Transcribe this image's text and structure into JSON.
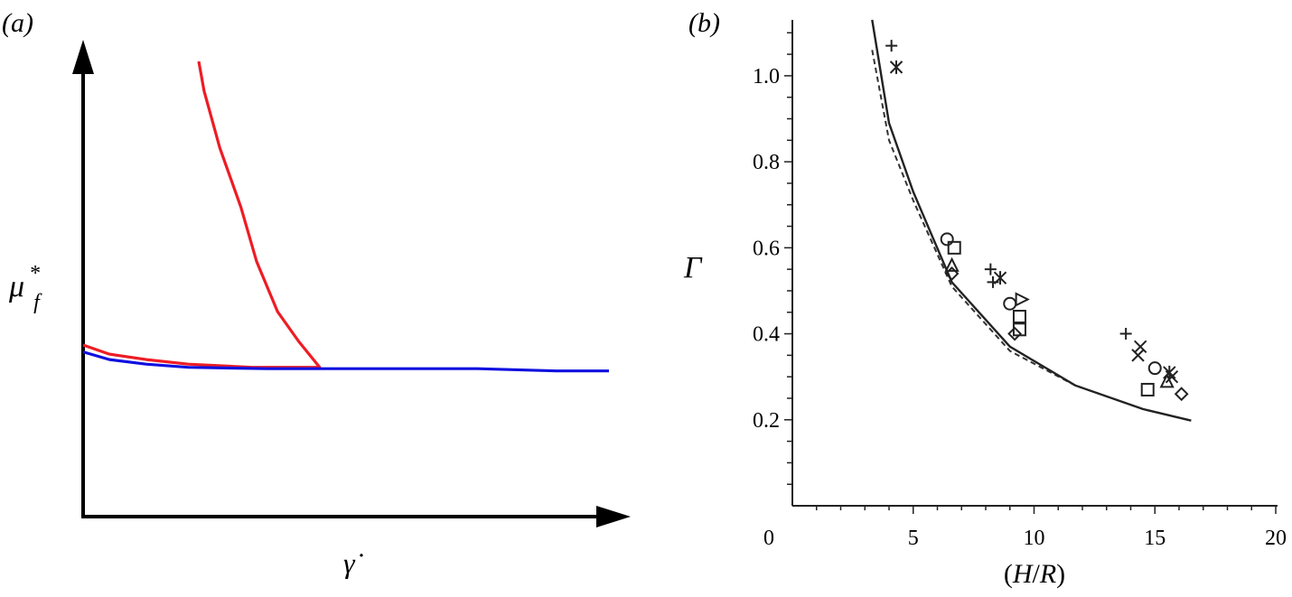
{
  "chart_data": [
    {
      "panel": "(a)",
      "type": "line",
      "xlabel": "γ̇",
      "ylabel": "μ",
      "ylabel_sup": "*",
      "ylabel_sub": "f",
      "colors": {
        "curve_red": "#ee1c24",
        "curve_blue": "#1010e0",
        "axis": "#000000"
      },
      "series": [
        {
          "color": "#ee1c24",
          "points": [
            [
              0.0,
              0.377
            ],
            [
              0.05,
              0.357
            ],
            [
              0.12,
              0.345
            ],
            [
              0.2,
              0.335
            ],
            [
              0.32,
              0.328
            ],
            [
              0.45,
              0.328
            ],
            [
              0.41,
              0.385
            ],
            [
              0.37,
              0.45
            ],
            [
              0.33,
              0.56
            ],
            [
              0.3,
              0.68
            ],
            [
              0.26,
              0.81
            ],
            [
              0.23,
              0.935
            ],
            [
              0.22,
              1.0
            ]
          ]
        },
        {
          "color": "#1010e0",
          "points": [
            [
              0.0,
              0.362
            ],
            [
              0.05,
              0.345
            ],
            [
              0.12,
              0.335
            ],
            [
              0.2,
              0.328
            ],
            [
              0.35,
              0.325
            ],
            [
              0.55,
              0.325
            ],
            [
              0.75,
              0.325
            ],
            [
              0.9,
              0.32
            ],
            [
              1.0,
              0.32
            ]
          ]
        }
      ]
    },
    {
      "panel": "(b)",
      "type": "scatter",
      "xlabel_parts": [
        "(",
        "H",
        "/",
        "R",
        ")"
      ],
      "ylabel": "Γ",
      "xlim": [
        0,
        20
      ],
      "ylim": [
        0,
        1.13
      ],
      "xticks": [
        0,
        5,
        10,
        15,
        20
      ],
      "xtick_labels": [
        "0",
        "5",
        "10",
        "15",
        "20"
      ],
      "yticks": [
        0.2,
        0.4,
        0.6,
        0.8,
        1.0
      ],
      "ytick_labels": [
        "0.2",
        "0.4",
        "0.6",
        "0.8",
        "1.0"
      ],
      "solid_line": [
        [
          3.3,
          1.13
        ],
        [
          4.0,
          0.89
        ],
        [
          5.0,
          0.73
        ],
        [
          6.6,
          0.52
        ],
        [
          9.0,
          0.37
        ],
        [
          11.7,
          0.28
        ],
        [
          14.5,
          0.225
        ],
        [
          16.5,
          0.198
        ]
      ],
      "dashed_line": [
        [
          3.3,
          1.06
        ],
        [
          4.0,
          0.85
        ],
        [
          5.0,
          0.71
        ],
        [
          6.6,
          0.51
        ],
        [
          9.0,
          0.36
        ],
        [
          11.7,
          0.28
        ],
        [
          14.5,
          0.225
        ],
        [
          16.5,
          0.198
        ]
      ],
      "markers": [
        {
          "shape": "plus",
          "x": 4.1,
          "y": 1.07
        },
        {
          "shape": "asterisk",
          "x": 4.3,
          "y": 1.02
        },
        {
          "shape": "circle",
          "x": 6.4,
          "y": 0.62
        },
        {
          "shape": "square",
          "x": 6.7,
          "y": 0.6
        },
        {
          "shape": "triangle",
          "x": 6.6,
          "y": 0.56
        },
        {
          "shape": "diamond",
          "x": 6.6,
          "y": 0.54
        },
        {
          "shape": "plus",
          "x": 8.2,
          "y": 0.55
        },
        {
          "shape": "plus",
          "x": 8.3,
          "y": 0.52
        },
        {
          "shape": "asterisk",
          "x": 8.6,
          "y": 0.53
        },
        {
          "shape": "circle",
          "x": 9.0,
          "y": 0.47
        },
        {
          "shape": "triangle-right",
          "x": 9.5,
          "y": 0.48
        },
        {
          "shape": "square",
          "x": 9.4,
          "y": 0.44
        },
        {
          "shape": "square",
          "x": 9.4,
          "y": 0.41
        },
        {
          "shape": "diamond",
          "x": 9.2,
          "y": 0.4
        },
        {
          "shape": "plus",
          "x": 13.8,
          "y": 0.4
        },
        {
          "shape": "cross",
          "x": 14.4,
          "y": 0.37
        },
        {
          "shape": "cross",
          "x": 14.3,
          "y": 0.35
        },
        {
          "shape": "circle",
          "x": 15.0,
          "y": 0.32
        },
        {
          "shape": "asterisk",
          "x": 15.6,
          "y": 0.31
        },
        {
          "shape": "triangle",
          "x": 15.5,
          "y": 0.29
        },
        {
          "shape": "square",
          "x": 14.7,
          "y": 0.27
        },
        {
          "shape": "diamond",
          "x": 16.1,
          "y": 0.26
        },
        {
          "shape": "cross",
          "x": 15.7,
          "y": 0.3
        }
      ]
    }
  ]
}
